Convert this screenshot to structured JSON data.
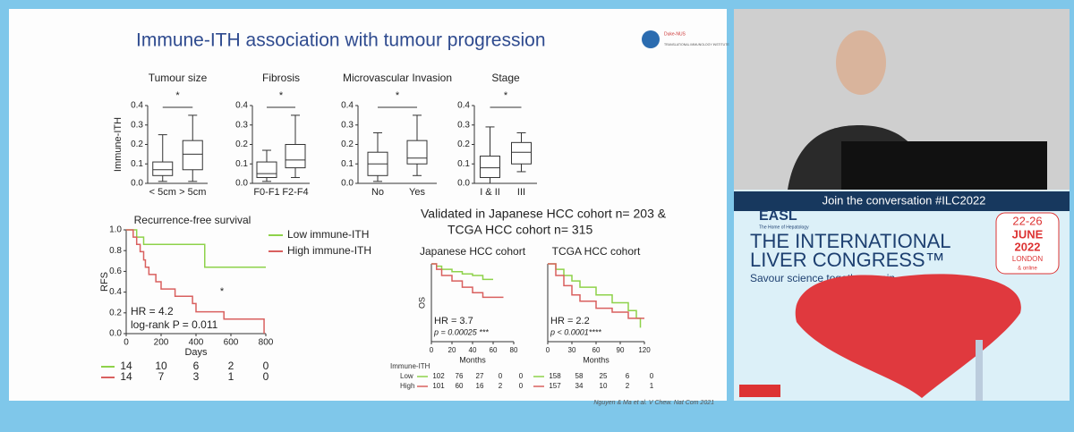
{
  "slide": {
    "title": "Immune-ITH association with tumour progression",
    "logo": [
      "Duke-NUS",
      "TRANSLATIONAL IMMUNOLOGY INSTITUTE"
    ],
    "boxplots": [
      {
        "title": "Tumour size",
        "ylabel": "Immune-ITH",
        "star": "*",
        "categories": [
          "< 5cm",
          "> 5cm"
        ],
        "ylim": [
          0,
          0.4
        ],
        "yticks": [
          {
            "value": 0,
            "label": "0.0"
          },
          0.1,
          0.2,
          0.3,
          0.4
        ],
        "boxes": [
          {
            "min": 0.01,
            "q1": 0.04,
            "median": 0.07,
            "q3": 0.11,
            "max": 0.25
          },
          {
            "min": 0.01,
            "q1": 0.07,
            "median": 0.15,
            "q3": 0.22,
            "max": 0.35
          }
        ]
      },
      {
        "title": "Fibrosis",
        "star": "*",
        "categories": [
          "F0-F1",
          "F2-F4"
        ],
        "ylim": [
          0,
          0.4
        ],
        "yticks": [
          {
            "value": 0,
            "label": "0.0"
          },
          0.1,
          0.2,
          0.3,
          0.4
        ],
        "boxes": [
          {
            "min": 0.01,
            "q1": 0.03,
            "median": 0.05,
            "q3": 0.11,
            "max": 0.17
          },
          {
            "min": 0.03,
            "q1": 0.08,
            "median": 0.12,
            "q3": 0.2,
            "max": 0.35
          }
        ]
      },
      {
        "title": "Microvascular Invasion",
        "star": "*",
        "categories": [
          "No",
          "Yes"
        ],
        "ylim": [
          0,
          0.4
        ],
        "yticks": [
          {
            "value": 0,
            "label": "0.0"
          },
          0.1,
          0.2,
          0.3,
          0.4
        ],
        "boxes": [
          {
            "min": 0.01,
            "q1": 0.04,
            "median": 0.1,
            "q3": 0.16,
            "max": 0.26
          },
          {
            "min": 0.04,
            "q1": 0.1,
            "median": 0.13,
            "q3": 0.22,
            "max": 0.35
          }
        ]
      },
      {
        "title": "Stage",
        "star": "*",
        "categories": [
          "I & II",
          "III"
        ],
        "ylim": [
          0,
          0.4
        ],
        "yticks": [
          {
            "value": 0,
            "label": "0.0"
          },
          0.1,
          0.2,
          0.3,
          0.4
        ],
        "boxes": [
          {
            "min": 0,
            "q1": 0.03,
            "median": 0.08,
            "q3": 0.14,
            "max": 0.29
          },
          {
            "min": 0.06,
            "q1": 0.1,
            "median": 0.16,
            "q3": 0.21,
            "max": 0.26
          }
        ]
      }
    ],
    "km": {
      "title": "Recurrence-free survival",
      "xlabel": "Days",
      "ylabel": "RFS",
      "star": "*",
      "hr": "HR = 4.2",
      "p": "log-rank P = 0.011",
      "xlim": [
        0,
        800
      ],
      "xticks": [
        0,
        200,
        400,
        600,
        800
      ],
      "ylim": [
        0,
        1
      ],
      "yticks": [
        {
          "value": 0,
          "label": "0.0"
        },
        0.2,
        0.4,
        0.6,
        0.8,
        {
          "value": 1,
          "label": "1.0"
        }
      ],
      "series": [
        {
          "name": "Low immune-ITH",
          "color": "#8ed24a",
          "x": [
            0,
            60,
            100,
            450,
            800
          ],
          "values": [
            1,
            0.93,
            0.86,
            0.64,
            0.64
          ],
          "risk": [
            14,
            10,
            6,
            2,
            0
          ]
        },
        {
          "name": "High immune-ITH",
          "color": "#d9605f",
          "x": [
            0,
            40,
            60,
            80,
            100,
            110,
            130,
            170,
            200,
            280,
            380,
            400,
            560,
            790
          ],
          "values": [
            1,
            0.93,
            0.86,
            0.79,
            0.71,
            0.64,
            0.57,
            0.5,
            0.43,
            0.36,
            0.29,
            0.21,
            0.14,
            0
          ],
          "risk": [
            14,
            7,
            3,
            1,
            0
          ]
        }
      ]
    },
    "validation": [
      "Validated in Japanese HCC cohort n= 203 &",
      "TCGA HCC cohort n= 315"
    ],
    "risk_header": "Immune-ITH",
    "groups": [
      "Low",
      "High"
    ],
    "os": [
      {
        "title": "Japanese HCC cohort",
        "ylabel": "OS",
        "xlabel": "Months",
        "hr": "HR = 3.7",
        "p": "p = 0.00025 ***",
        "xlim": [
          0,
          80
        ],
        "xticks": [
          0,
          20,
          40,
          60,
          80
        ],
        "ylim": [
          0,
          1
        ],
        "series": [
          {
            "color": "#8ed24a",
            "x": [
              0,
              5,
              10,
              20,
              30,
              40,
              50,
              60
            ],
            "values": [
              1,
              0.97,
              0.93,
              0.9,
              0.87,
              0.85,
              0.8,
              0.8
            ],
            "risk": [
              102,
              76,
              27,
              0,
              0
            ]
          },
          {
            "color": "#d9605f",
            "x": [
              0,
              5,
              10,
              20,
              30,
              40,
              50,
              70
            ],
            "values": [
              1,
              0.93,
              0.85,
              0.78,
              0.7,
              0.63,
              0.57,
              0.57
            ],
            "risk": [
              101,
              60,
              16,
              2,
              0
            ]
          }
        ]
      },
      {
        "title": "TCGA HCC cohort",
        "xlabel": "Months",
        "hr": "HR = 2.2",
        "p": "p < 0.0001****",
        "xlim": [
          0,
          120
        ],
        "xticks": [
          0,
          30,
          60,
          90,
          120
        ],
        "ylim": [
          0,
          1
        ],
        "series": [
          {
            "color": "#8ed24a",
            "x": [
              0,
              10,
              20,
              30,
              40,
              60,
              80,
              100,
              110,
              115
            ],
            "values": [
              1,
              0.93,
              0.85,
              0.78,
              0.7,
              0.6,
              0.5,
              0.4,
              0.3,
              0.18
            ],
            "risk": [
              158,
              58,
              25,
              6,
              0
            ]
          },
          {
            "color": "#d9605f",
            "x": [
              0,
              10,
              20,
              30,
              40,
              60,
              80,
              100,
              120
            ],
            "values": [
              1,
              0.85,
              0.72,
              0.6,
              0.52,
              0.43,
              0.38,
              0.3,
              0.3
            ],
            "risk": [
              157,
              34,
              10,
              2,
              1
            ]
          }
        ]
      }
    ],
    "citation": "Nguyen & Ma et al. V Chew. Nat Com 2021"
  },
  "sidebar": {
    "hashtag": "Join the conversation #ILC2022",
    "org": "EASL",
    "org_sub": "The Home of Hepatology",
    "dates": "22-26",
    "month": "JUNE",
    "year": "2022",
    "city": "LONDON",
    "online": "& online",
    "event1": "THE INTERNATIONAL",
    "event2": "LIVER CONGRESS™",
    "tagline": "Savour science together again"
  }
}
